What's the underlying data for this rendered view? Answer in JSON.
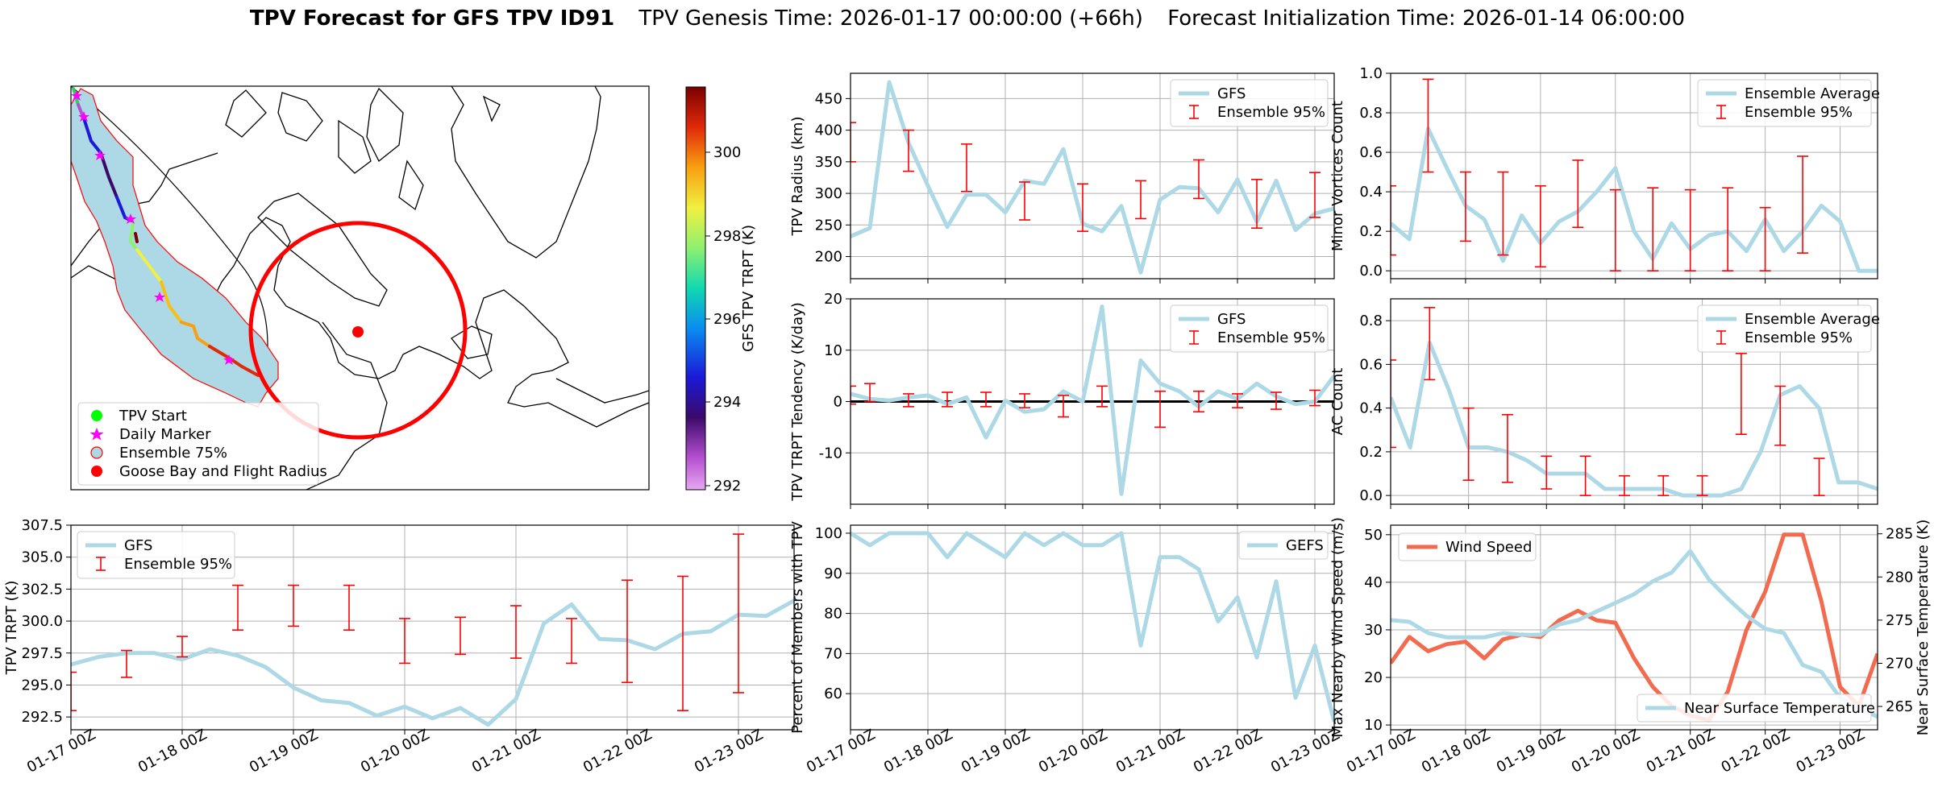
{
  "title": {
    "bold": "TPV Forecast for GFS TPV ID91",
    "genesis": "TPV Genesis Time: 2026-01-17 00:00:00 (+66h)",
    "init": "Forecast Initialization Time: 2026-01-14 06:00:00"
  },
  "colors": {
    "gfs": "#add8e6",
    "ens": "#ff0000",
    "wind": "#f26b4f",
    "temp_axis": "#4169e1",
    "cone": "#add8e6",
    "circle": "#ff0000"
  },
  "map": {
    "colorbar_label": "GFS TPV TRPT (K)",
    "colorbar_ticks": [
      "300",
      "298",
      "296",
      "294",
      "292"
    ],
    "legend": [
      "TPV Start",
      "Daily Marker",
      "Ensemble 75%",
      "Goose Bay and Flight Radius"
    ],
    "icons": [
      "tpv-start-dot-icon",
      "daily-marker-star-icon",
      "ensemble-cone-swatch-icon",
      "goose-bay-dot-icon"
    ]
  },
  "time_ticks": [
    "01-17 00Z",
    "01-18 00Z",
    "01-19 00Z",
    "01-20 00Z",
    "01-21 00Z",
    "01-22 00Z",
    "01-23 00Z"
  ],
  "chart_data": [
    {
      "id": "radius",
      "type": "line",
      "ylabel": "TPV Radius (km)",
      "ylim": [
        165,
        490
      ],
      "yticks": [
        200,
        250,
        300,
        350,
        400,
        450
      ],
      "legend": [
        "GFS",
        "Ensemble 95%"
      ],
      "series": [
        {
          "name": "GFS",
          "values": [
            232,
            245,
            476,
            380,
            312,
            247,
            298,
            298,
            270,
            320,
            315,
            370,
            252,
            240,
            280,
            175,
            290,
            310,
            308,
            270,
            322,
            255,
            320,
            242,
            268,
            276
          ]
        }
      ],
      "ensemble_95": [
        [
          0,
          350,
          412
        ],
        [
          3,
          335,
          400
        ],
        [
          6,
          303,
          378
        ],
        [
          9,
          258,
          318
        ],
        [
          12,
          240,
          315
        ],
        [
          15,
          260,
          320
        ],
        [
          18,
          292,
          353
        ],
        [
          21,
          245,
          322
        ],
        [
          24,
          262,
          333
        ],
        [
          27,
          275,
          345
        ],
        [
          30,
          290,
          375
        ],
        [
          33,
          248,
          357
        ],
        [
          36,
          285,
          367
        ]
      ]
    },
    {
      "id": "tendency",
      "type": "line",
      "ylabel": "TPV TRPT Tendency (K/day)",
      "ylim": [
        -20,
        20
      ],
      "yticks": [
        -10,
        0,
        10,
        20
      ],
      "legend": [
        "GFS",
        "Ensemble 95%"
      ],
      "series": [
        {
          "name": "GFS",
          "values": [
            1.5,
            0.5,
            0.2,
            0.8,
            1.2,
            -0.5,
            0.8,
            -7.0,
            0.2,
            -2.0,
            -1.5,
            2.0,
            0.0,
            18.5,
            -18.0,
            8.0,
            3.5,
            2.0,
            -1.0,
            2.0,
            0.5,
            3.5,
            1.0,
            -0.5,
            0.0,
            5.0
          ]
        }
      ],
      "ensemble_95": [
        [
          0,
          -0.5,
          3.0
        ],
        [
          1,
          0,
          3.5
        ],
        [
          3,
          -1.0,
          1.5
        ],
        [
          5,
          -1.0,
          1.8
        ],
        [
          7,
          -1.0,
          1.8
        ],
        [
          9,
          -1.2,
          1.5
        ],
        [
          11,
          -3.0,
          1.2
        ],
        [
          13,
          -1.0,
          3.0
        ],
        [
          16,
          -5.0,
          2.0
        ],
        [
          18,
          -2.0,
          2.0
        ],
        [
          20,
          -1.2,
          1.5
        ],
        [
          22,
          -1.5,
          1.8
        ],
        [
          24,
          -0.8,
          2.2
        ],
        [
          26,
          0,
          2.5
        ],
        [
          28,
          -1.0,
          2.5
        ]
      ]
    },
    {
      "id": "trpt",
      "type": "line",
      "ylabel": "TPV TRPT (K)",
      "ylim": [
        291.5,
        307.5
      ],
      "yticks": [
        "292.5",
        "295.0",
        "297.5",
        "300.0",
        "302.5",
        "305.0",
        "307.5"
      ],
      "legend": [
        "GFS",
        "Ensemble 95%"
      ],
      "series": [
        {
          "name": "GFS",
          "values": [
            296.6,
            297.2,
            297.5,
            297.5,
            297.0,
            297.8,
            297.3,
            296.4,
            294.8,
            293.8,
            293.6,
            292.6,
            293.3,
            292.4,
            293.2,
            291.9,
            293.9,
            299.8,
            301.3,
            298.6,
            298.5,
            297.8,
            299.0,
            299.2,
            300.5,
            300.4,
            301.6
          ]
        }
      ],
      "ensemble_95": [
        [
          0,
          293.0,
          296.0
        ],
        [
          2,
          295.6,
          297.7
        ],
        [
          4,
          297.2,
          298.8
        ],
        [
          6,
          299.3,
          302.8
        ],
        [
          8,
          299.6,
          302.8
        ],
        [
          10,
          299.3,
          302.8
        ],
        [
          12,
          296.7,
          300.2
        ],
        [
          14,
          297.4,
          300.3
        ],
        [
          16,
          297.1,
          301.2
        ],
        [
          18,
          296.7,
          300.2
        ],
        [
          20,
          295.2,
          303.2
        ],
        [
          22,
          293.0,
          303.5
        ],
        [
          24,
          294.4,
          306.8
        ]
      ]
    },
    {
      "id": "members",
      "type": "line",
      "ylabel": "Percent of Members with TPV",
      "ylim": [
        51,
        102
      ],
      "yticks": [
        60,
        70,
        80,
        90,
        100
      ],
      "legend": [
        "GEFS"
      ],
      "series": [
        {
          "name": "GEFS",
          "values": [
            100,
            97,
            100,
            100,
            100,
            94,
            100,
            97,
            94,
            100,
            97,
            100,
            97,
            97,
            100,
            72,
            94,
            94,
            91,
            78,
            84,
            69,
            88,
            59,
            72,
            53
          ]
        }
      ]
    },
    {
      "id": "minor",
      "type": "line",
      "ylabel": "Minor Vortices Count",
      "ylim": [
        -0.04,
        1.0
      ],
      "yticks": [
        "0.0",
        "0.2",
        "0.4",
        "0.6",
        "0.8",
        "1.0"
      ],
      "legend": [
        "Ensemble Average",
        "Ensemble 95%"
      ],
      "series": [
        {
          "name": "Ensemble Average",
          "values": [
            0.24,
            0.16,
            0.72,
            0.52,
            0.33,
            0.26,
            0.05,
            0.28,
            0.14,
            0.25,
            0.3,
            0.4,
            0.52,
            0.2,
            0.06,
            0.24,
            0.11,
            0.18,
            0.2,
            0.1,
            0.26,
            0.1,
            0.2,
            0.33,
            0.25,
            0.0,
            0.0
          ]
        }
      ],
      "ensemble_95": [
        [
          0,
          0.08,
          0.43
        ],
        [
          2,
          0.5,
          0.97
        ],
        [
          4,
          0.15,
          0.5
        ],
        [
          6,
          0.08,
          0.5
        ],
        [
          8,
          0.02,
          0.43
        ],
        [
          10,
          0.22,
          0.56
        ],
        [
          12,
          0.0,
          0.41
        ],
        [
          14,
          0.0,
          0.42
        ],
        [
          16,
          0.0,
          0.41
        ],
        [
          18,
          0.0,
          0.42
        ],
        [
          20,
          0.0,
          0.32
        ],
        [
          22,
          0.09,
          0.58
        ]
      ]
    },
    {
      "id": "ac",
      "type": "line",
      "ylabel": "AC Count",
      "ylim": [
        -0.04,
        0.9
      ],
      "yticks": [
        "0.0",
        "0.2",
        "0.4",
        "0.6",
        "0.8"
      ],
      "legend": [
        "Ensemble Average",
        "Ensemble 95%"
      ],
      "series": [
        {
          "name": "Ensemble Average",
          "values": [
            0.45,
            0.22,
            0.7,
            0.48,
            0.22,
            0.22,
            0.2,
            0.16,
            0.1,
            0.1,
            0.1,
            0.03,
            0.03,
            0.03,
            0.03,
            0.0,
            0.0,
            0.0,
            0.03,
            0.2,
            0.46,
            0.5,
            0.4,
            0.06,
            0.06,
            0.03
          ]
        }
      ],
      "ensemble_95": [
        [
          0,
          0.22,
          0.62
        ],
        [
          2,
          0.53,
          0.86
        ],
        [
          4,
          0.07,
          0.4
        ],
        [
          6,
          0.06,
          0.37
        ],
        [
          8,
          0.03,
          0.18
        ],
        [
          10,
          0.0,
          0.18
        ],
        [
          12,
          0.0,
          0.09
        ],
        [
          14,
          0.0,
          0.09
        ],
        [
          16,
          0.0,
          0.09
        ],
        [
          18,
          0.28,
          0.65
        ],
        [
          20,
          0.23,
          0.5
        ],
        [
          22,
          0.0,
          0.17
        ]
      ]
    },
    {
      "id": "wind_temp",
      "type": "line",
      "ylabel": "Max Nearby Wind Speed (m/s)",
      "ylabel_right": "Near Surface Temperature (K)",
      "ylim": [
        9,
        52
      ],
      "ylim_right": [
        262.3,
        286
      ],
      "yticks": [
        10,
        20,
        30,
        40,
        50
      ],
      "yticks_right": [
        265,
        270,
        275,
        280,
        285
      ],
      "legend": [
        "Wind Speed",
        "Near Surface Temperature"
      ],
      "series": [
        {
          "name": "Wind Speed",
          "values": [
            23,
            28.5,
            25.5,
            27,
            27.5,
            24,
            28,
            29,
            28.5,
            32,
            34,
            32,
            31.5,
            24,
            18,
            14,
            12,
            11,
            17,
            30,
            38,
            50,
            50,
            36,
            18,
            14,
            25
          ]
        },
        {
          "name": "Near Surface Temperature",
          "values": [
            275,
            274.8,
            273.5,
            273,
            273,
            273,
            273.5,
            273.3,
            273.3,
            274.5,
            275,
            276,
            277,
            278,
            279.5,
            280.5,
            283,
            279.7,
            277.5,
            275.5,
            274,
            273.5,
            269.8,
            269,
            266,
            264.8,
            263.8
          ]
        }
      ]
    }
  ]
}
